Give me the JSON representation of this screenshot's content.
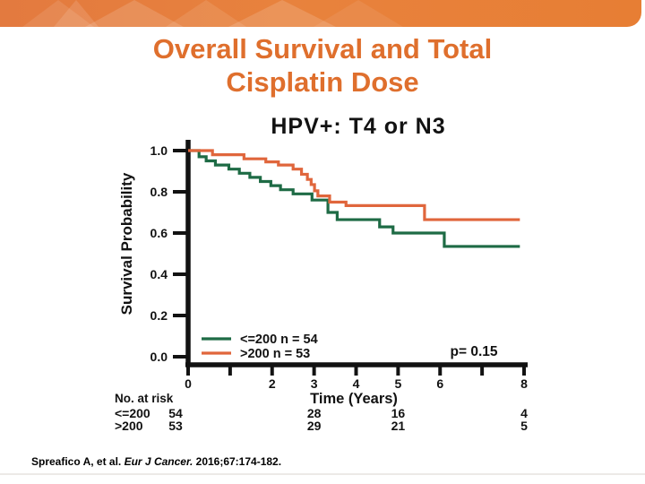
{
  "slide": {
    "title_line1": "Overall Survival and Total",
    "title_line2": "Cisplatin Dose",
    "citation": {
      "prefix": "Spreafico A, et al. ",
      "journal_italic": "Eur J Cancer.",
      "suffix": " 2016;67:174-182."
    }
  },
  "colors": {
    "banner_orange": "#e8823d",
    "title_orange": "#df6f2d",
    "series_green": "#1e6b45",
    "series_orange": "#e0663c",
    "axis_black": "#121212"
  },
  "chart_data": {
    "type": "line",
    "subtype": "kaplan-meier-step",
    "title": "HPV+: T4 or N3",
    "xlabel": "Time (Years)",
    "ylabel": "Survival Probability",
    "xlim": [
      0,
      8
    ],
    "ylim": [
      0.0,
      1.0
    ],
    "grid": false,
    "x_ticks": [
      0,
      1,
      2,
      3,
      4,
      5,
      6,
      7,
      8
    ],
    "x_tick_labels": [
      "0",
      "",
      "2",
      "3",
      "4",
      "5",
      "6",
      "",
      "8"
    ],
    "y_ticks": [
      1.0,
      0.8,
      0.6,
      0.4,
      0.2,
      0.0
    ],
    "y_tick_labels": [
      "1.0",
      "0.8",
      "0.6",
      "0.4",
      "0.2",
      "0.0"
    ],
    "legend_position": "lower-left-inside",
    "annotations": [
      {
        "text": "p= 0.15",
        "x": 6.8,
        "y": 0.0
      }
    ],
    "series": [
      {
        "name": "<=200 n = 54",
        "color": "#1e6b45",
        "end_x": 7.9,
        "steps": [
          [
            0,
            1.0
          ],
          [
            0.26,
            0.97
          ],
          [
            0.43,
            0.95
          ],
          [
            0.65,
            0.93
          ],
          [
            0.97,
            0.91
          ],
          [
            1.22,
            0.89
          ],
          [
            1.47,
            0.87
          ],
          [
            1.72,
            0.85
          ],
          [
            1.97,
            0.83
          ],
          [
            2.2,
            0.81
          ],
          [
            2.5,
            0.79
          ],
          [
            2.95,
            0.76
          ],
          [
            3.33,
            0.7
          ],
          [
            3.55,
            0.665
          ],
          [
            4.56,
            0.63
          ],
          [
            4.88,
            0.6
          ],
          [
            6.1,
            0.535
          ]
        ]
      },
      {
        "name": ">200 n = 53",
        "color": "#e0663c",
        "end_x": 7.9,
        "steps": [
          [
            0,
            1.0
          ],
          [
            0.58,
            0.98
          ],
          [
            1.33,
            0.96
          ],
          [
            1.85,
            0.945
          ],
          [
            2.15,
            0.93
          ],
          [
            2.5,
            0.91
          ],
          [
            2.7,
            0.885
          ],
          [
            2.84,
            0.86
          ],
          [
            2.93,
            0.835
          ],
          [
            3.01,
            0.805
          ],
          [
            3.09,
            0.78
          ],
          [
            3.37,
            0.75
          ],
          [
            3.76,
            0.733
          ],
          [
            5.63,
            0.665
          ]
        ]
      }
    ],
    "risk_table": {
      "label": "No. at risk",
      "time_points": [
        0,
        3,
        5,
        8
      ],
      "rows": [
        {
          "group": "<=200",
          "color": "#1e6b45",
          "values": [
            "54",
            "28",
            "16",
            "4"
          ]
        },
        {
          "group": ">200",
          "color": "#e0663c",
          "values": [
            "53",
            "29",
            "21",
            "5"
          ]
        }
      ]
    }
  }
}
